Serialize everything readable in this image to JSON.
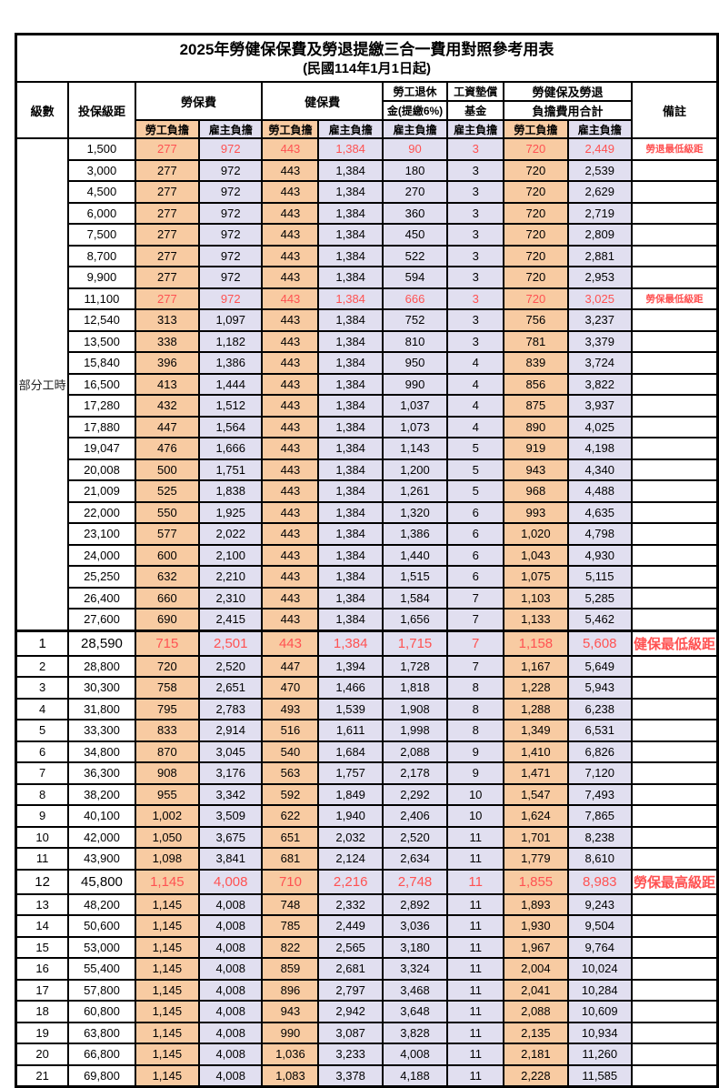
{
  "title": "2025年勞健保保費及勞退提繳三合一費用對照參考用表",
  "subtitle": "(民國114年1月1日起)",
  "colors": {
    "employee_bg": "#F8CBA2",
    "employer_bg": "#E1DFF0",
    "highlight_text": "#FF5252",
    "border": "#000000"
  },
  "header": {
    "level": "級數",
    "bracket": "投保級距",
    "labor_fee": "勞保費",
    "health_fee": "健保費",
    "pension_line1": "勞工退休",
    "pension_line2": "金(提繳6%)",
    "wage_fund_line1": "工資墊償",
    "wage_fund_line2": "基金",
    "total_line1": "勞健保及勞退",
    "total_line2": "負擔費用合計",
    "note": "備註",
    "employee_share": "勞工負擔",
    "employer_share": "雇主負擔"
  },
  "group_label": "部分工時",
  "group_rowspan": 23,
  "rows": [
    {
      "level": "",
      "bracket": "1,500",
      "labor_emp": "277",
      "labor_er": "972",
      "health_emp": "443",
      "health_er": "1,384",
      "pension_er": "90",
      "fund_er": "3",
      "total_emp": "720",
      "total_er": "2,449",
      "note": "勞退最低級距",
      "red": true,
      "large": false
    },
    {
      "level": "",
      "bracket": "3,000",
      "labor_emp": "277",
      "labor_er": "972",
      "health_emp": "443",
      "health_er": "1,384",
      "pension_er": "180",
      "fund_er": "3",
      "total_emp": "720",
      "total_er": "2,539",
      "note": "",
      "red": false,
      "large": false
    },
    {
      "level": "",
      "bracket": "4,500",
      "labor_emp": "277",
      "labor_er": "972",
      "health_emp": "443",
      "health_er": "1,384",
      "pension_er": "270",
      "fund_er": "3",
      "total_emp": "720",
      "total_er": "2,629",
      "note": "",
      "red": false,
      "large": false
    },
    {
      "level": "",
      "bracket": "6,000",
      "labor_emp": "277",
      "labor_er": "972",
      "health_emp": "443",
      "health_er": "1,384",
      "pension_er": "360",
      "fund_er": "3",
      "total_emp": "720",
      "total_er": "2,719",
      "note": "",
      "red": false,
      "large": false
    },
    {
      "level": "",
      "bracket": "7,500",
      "labor_emp": "277",
      "labor_er": "972",
      "health_emp": "443",
      "health_er": "1,384",
      "pension_er": "450",
      "fund_er": "3",
      "total_emp": "720",
      "total_er": "2,809",
      "note": "",
      "red": false,
      "large": false
    },
    {
      "level": "",
      "bracket": "8,700",
      "labor_emp": "277",
      "labor_er": "972",
      "health_emp": "443",
      "health_er": "1,384",
      "pension_er": "522",
      "fund_er": "3",
      "total_emp": "720",
      "total_er": "2,881",
      "note": "",
      "red": false,
      "large": false
    },
    {
      "level": "",
      "bracket": "9,900",
      "labor_emp": "277",
      "labor_er": "972",
      "health_emp": "443",
      "health_er": "1,384",
      "pension_er": "594",
      "fund_er": "3",
      "total_emp": "720",
      "total_er": "2,953",
      "note": "",
      "red": false,
      "large": false
    },
    {
      "level": "",
      "bracket": "11,100",
      "labor_emp": "277",
      "labor_er": "972",
      "health_emp": "443",
      "health_er": "1,384",
      "pension_er": "666",
      "fund_er": "3",
      "total_emp": "720",
      "total_er": "3,025",
      "note": "勞保最低級距",
      "red": true,
      "large": false
    },
    {
      "level": "",
      "bracket": "12,540",
      "labor_emp": "313",
      "labor_er": "1,097",
      "health_emp": "443",
      "health_er": "1,384",
      "pension_er": "752",
      "fund_er": "3",
      "total_emp": "756",
      "total_er": "3,237",
      "note": "",
      "red": false,
      "large": false
    },
    {
      "level": "",
      "bracket": "13,500",
      "labor_emp": "338",
      "labor_er": "1,182",
      "health_emp": "443",
      "health_er": "1,384",
      "pension_er": "810",
      "fund_er": "3",
      "total_emp": "781",
      "total_er": "3,379",
      "note": "",
      "red": false,
      "large": false
    },
    {
      "level": "",
      "bracket": "15,840",
      "labor_emp": "396",
      "labor_er": "1,386",
      "health_emp": "443",
      "health_er": "1,384",
      "pension_er": "950",
      "fund_er": "4",
      "total_emp": "839",
      "total_er": "3,724",
      "note": "",
      "red": false,
      "large": false
    },
    {
      "level": "",
      "bracket": "16,500",
      "labor_emp": "413",
      "labor_er": "1,444",
      "health_emp": "443",
      "health_er": "1,384",
      "pension_er": "990",
      "fund_er": "4",
      "total_emp": "856",
      "total_er": "3,822",
      "note": "",
      "red": false,
      "large": false
    },
    {
      "level": "",
      "bracket": "17,280",
      "labor_emp": "432",
      "labor_er": "1,512",
      "health_emp": "443",
      "health_er": "1,384",
      "pension_er": "1,037",
      "fund_er": "4",
      "total_emp": "875",
      "total_er": "3,937",
      "note": "",
      "red": false,
      "large": false
    },
    {
      "level": "",
      "bracket": "17,880",
      "labor_emp": "447",
      "labor_er": "1,564",
      "health_emp": "443",
      "health_er": "1,384",
      "pension_er": "1,073",
      "fund_er": "4",
      "total_emp": "890",
      "total_er": "4,025",
      "note": "",
      "red": false,
      "large": false
    },
    {
      "level": "",
      "bracket": "19,047",
      "labor_emp": "476",
      "labor_er": "1,666",
      "health_emp": "443",
      "health_er": "1,384",
      "pension_er": "1,143",
      "fund_er": "5",
      "total_emp": "919",
      "total_er": "4,198",
      "note": "",
      "red": false,
      "large": false
    },
    {
      "level": "",
      "bracket": "20,008",
      "labor_emp": "500",
      "labor_er": "1,751",
      "health_emp": "443",
      "health_er": "1,384",
      "pension_er": "1,200",
      "fund_er": "5",
      "total_emp": "943",
      "total_er": "4,340",
      "note": "",
      "red": false,
      "large": false
    },
    {
      "level": "",
      "bracket": "21,009",
      "labor_emp": "525",
      "labor_er": "1,838",
      "health_emp": "443",
      "health_er": "1,384",
      "pension_er": "1,261",
      "fund_er": "5",
      "total_emp": "968",
      "total_er": "4,488",
      "note": "",
      "red": false,
      "large": false
    },
    {
      "level": "",
      "bracket": "22,000",
      "labor_emp": "550",
      "labor_er": "1,925",
      "health_emp": "443",
      "health_er": "1,384",
      "pension_er": "1,320",
      "fund_er": "6",
      "total_emp": "993",
      "total_er": "4,635",
      "note": "",
      "red": false,
      "large": false
    },
    {
      "level": "",
      "bracket": "23,100",
      "labor_emp": "577",
      "labor_er": "2,022",
      "health_emp": "443",
      "health_er": "1,384",
      "pension_er": "1,386",
      "fund_er": "6",
      "total_emp": "1,020",
      "total_er": "4,798",
      "note": "",
      "red": false,
      "large": false
    },
    {
      "level": "",
      "bracket": "24,000",
      "labor_emp": "600",
      "labor_er": "2,100",
      "health_emp": "443",
      "health_er": "1,384",
      "pension_er": "1,440",
      "fund_er": "6",
      "total_emp": "1,043",
      "total_er": "4,930",
      "note": "",
      "red": false,
      "large": false
    },
    {
      "level": "",
      "bracket": "25,250",
      "labor_emp": "632",
      "labor_er": "2,210",
      "health_emp": "443",
      "health_er": "1,384",
      "pension_er": "1,515",
      "fund_er": "6",
      "total_emp": "1,075",
      "total_er": "5,115",
      "note": "",
      "red": false,
      "large": false
    },
    {
      "level": "",
      "bracket": "26,400",
      "labor_emp": "660",
      "labor_er": "2,310",
      "health_emp": "443",
      "health_er": "1,384",
      "pension_er": "1,584",
      "fund_er": "7",
      "total_emp": "1,103",
      "total_er": "5,285",
      "note": "",
      "red": false,
      "large": false
    },
    {
      "level": "",
      "bracket": "27,600",
      "labor_emp": "690",
      "labor_er": "2,415",
      "health_emp": "443",
      "health_er": "1,384",
      "pension_er": "1,656",
      "fund_er": "7",
      "total_emp": "1,133",
      "total_er": "5,462",
      "note": "",
      "red": false,
      "large": false
    },
    {
      "level": "1",
      "bracket": "28,590",
      "labor_emp": "715",
      "labor_er": "2,501",
      "health_emp": "443",
      "health_er": "1,384",
      "pension_er": "1,715",
      "fund_er": "7",
      "total_emp": "1,158",
      "total_er": "5,608",
      "note": "健保最低級距",
      "red": true,
      "large": true,
      "thick_top": true
    },
    {
      "level": "2",
      "bracket": "28,800",
      "labor_emp": "720",
      "labor_er": "2,520",
      "health_emp": "447",
      "health_er": "1,394",
      "pension_er": "1,728",
      "fund_er": "7",
      "total_emp": "1,167",
      "total_er": "5,649",
      "note": "",
      "red": false,
      "large": false
    },
    {
      "level": "3",
      "bracket": "30,300",
      "labor_emp": "758",
      "labor_er": "2,651",
      "health_emp": "470",
      "health_er": "1,466",
      "pension_er": "1,818",
      "fund_er": "8",
      "total_emp": "1,228",
      "total_er": "5,943",
      "note": "",
      "red": false,
      "large": false
    },
    {
      "level": "4",
      "bracket": "31,800",
      "labor_emp": "795",
      "labor_er": "2,783",
      "health_emp": "493",
      "health_er": "1,539",
      "pension_er": "1,908",
      "fund_er": "8",
      "total_emp": "1,288",
      "total_er": "6,238",
      "note": "",
      "red": false,
      "large": false
    },
    {
      "level": "5",
      "bracket": "33,300",
      "labor_emp": "833",
      "labor_er": "2,914",
      "health_emp": "516",
      "health_er": "1,611",
      "pension_er": "1,998",
      "fund_er": "8",
      "total_emp": "1,349",
      "total_er": "6,531",
      "note": "",
      "red": false,
      "large": false
    },
    {
      "level": "6",
      "bracket": "34,800",
      "labor_emp": "870",
      "labor_er": "3,045",
      "health_emp": "540",
      "health_er": "1,684",
      "pension_er": "2,088",
      "fund_er": "9",
      "total_emp": "1,410",
      "total_er": "6,826",
      "note": "",
      "red": false,
      "large": false
    },
    {
      "level": "7",
      "bracket": "36,300",
      "labor_emp": "908",
      "labor_er": "3,176",
      "health_emp": "563",
      "health_er": "1,757",
      "pension_er": "2,178",
      "fund_er": "9",
      "total_emp": "1,471",
      "total_er": "7,120",
      "note": "",
      "red": false,
      "large": false
    },
    {
      "level": "8",
      "bracket": "38,200",
      "labor_emp": "955",
      "labor_er": "3,342",
      "health_emp": "592",
      "health_er": "1,849",
      "pension_er": "2,292",
      "fund_er": "10",
      "total_emp": "1,547",
      "total_er": "7,493",
      "note": "",
      "red": false,
      "large": false
    },
    {
      "level": "9",
      "bracket": "40,100",
      "labor_emp": "1,002",
      "labor_er": "3,509",
      "health_emp": "622",
      "health_er": "1,940",
      "pension_er": "2,406",
      "fund_er": "10",
      "total_emp": "1,624",
      "total_er": "7,865",
      "note": "",
      "red": false,
      "large": false
    },
    {
      "level": "10",
      "bracket": "42,000",
      "labor_emp": "1,050",
      "labor_er": "3,675",
      "health_emp": "651",
      "health_er": "2,032",
      "pension_er": "2,520",
      "fund_er": "11",
      "total_emp": "1,701",
      "total_er": "8,238",
      "note": "",
      "red": false,
      "large": false
    },
    {
      "level": "11",
      "bracket": "43,900",
      "labor_emp": "1,098",
      "labor_er": "3,841",
      "health_emp": "681",
      "health_er": "2,124",
      "pension_er": "2,634",
      "fund_er": "11",
      "total_emp": "1,779",
      "total_er": "8,610",
      "note": "",
      "red": false,
      "large": false
    },
    {
      "level": "12",
      "bracket": "45,800",
      "labor_emp": "1,145",
      "labor_er": "4,008",
      "health_emp": "710",
      "health_er": "2,216",
      "pension_er": "2,748",
      "fund_er": "11",
      "total_emp": "1,855",
      "total_er": "8,983",
      "note": "勞保最高級距",
      "red": true,
      "large": true
    },
    {
      "level": "13",
      "bracket": "48,200",
      "labor_emp": "1,145",
      "labor_er": "4,008",
      "health_emp": "748",
      "health_er": "2,332",
      "pension_er": "2,892",
      "fund_er": "11",
      "total_emp": "1,893",
      "total_er": "9,243",
      "note": "",
      "red": false,
      "large": false
    },
    {
      "level": "14",
      "bracket": "50,600",
      "labor_emp": "1,145",
      "labor_er": "4,008",
      "health_emp": "785",
      "health_er": "2,449",
      "pension_er": "3,036",
      "fund_er": "11",
      "total_emp": "1,930",
      "total_er": "9,504",
      "note": "",
      "red": false,
      "large": false
    },
    {
      "level": "15",
      "bracket": "53,000",
      "labor_emp": "1,145",
      "labor_er": "4,008",
      "health_emp": "822",
      "health_er": "2,565",
      "pension_er": "3,180",
      "fund_er": "11",
      "total_emp": "1,967",
      "total_er": "9,764",
      "note": "",
      "red": false,
      "large": false
    },
    {
      "level": "16",
      "bracket": "55,400",
      "labor_emp": "1,145",
      "labor_er": "4,008",
      "health_emp": "859",
      "health_er": "2,681",
      "pension_er": "3,324",
      "fund_er": "11",
      "total_emp": "2,004",
      "total_er": "10,024",
      "note": "",
      "red": false,
      "large": false
    },
    {
      "level": "17",
      "bracket": "57,800",
      "labor_emp": "1,145",
      "labor_er": "4,008",
      "health_emp": "896",
      "health_er": "2,797",
      "pension_er": "3,468",
      "fund_er": "11",
      "total_emp": "2,041",
      "total_er": "10,284",
      "note": "",
      "red": false,
      "large": false
    },
    {
      "level": "18",
      "bracket": "60,800",
      "labor_emp": "1,145",
      "labor_er": "4,008",
      "health_emp": "943",
      "health_er": "2,942",
      "pension_er": "3,648",
      "fund_er": "11",
      "total_emp": "2,088",
      "total_er": "10,609",
      "note": "",
      "red": false,
      "large": false
    },
    {
      "level": "19",
      "bracket": "63,800",
      "labor_emp": "1,145",
      "labor_er": "4,008",
      "health_emp": "990",
      "health_er": "3,087",
      "pension_er": "3,828",
      "fund_er": "11",
      "total_emp": "2,135",
      "total_er": "10,934",
      "note": "",
      "red": false,
      "large": false
    },
    {
      "level": "20",
      "bracket": "66,800",
      "labor_emp": "1,145",
      "labor_er": "4,008",
      "health_emp": "1,036",
      "health_er": "3,233",
      "pension_er": "4,008",
      "fund_er": "11",
      "total_emp": "2,181",
      "total_er": "11,260",
      "note": "",
      "red": false,
      "large": false
    },
    {
      "level": "21",
      "bracket": "69,800",
      "labor_emp": "1,145",
      "labor_er": "4,008",
      "health_emp": "1,083",
      "health_er": "3,378",
      "pension_er": "4,188",
      "fund_er": "11",
      "total_emp": "2,228",
      "total_er": "11,585",
      "note": "",
      "red": false,
      "large": false
    }
  ]
}
